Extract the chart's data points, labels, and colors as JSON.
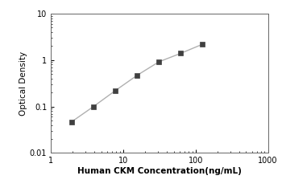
{
  "x": [
    1.95,
    3.9,
    7.8,
    15.6,
    31.25,
    62.5,
    125
  ],
  "y": [
    0.047,
    0.1,
    0.22,
    0.47,
    0.92,
    1.4,
    2.2
  ],
  "xlim": [
    1,
    1000
  ],
  "ylim": [
    0.01,
    10
  ],
  "xlabel": "Human CKM Concentration(ng/mL)",
  "ylabel": "Optical Density",
  "line_color": "#b0b0b0",
  "marker_color": "#404040",
  "marker": "s",
  "marker_size": 4,
  "background_color": "#ffffff",
  "label_fontsize": 7.5,
  "tick_fontsize": 7,
  "yticks": [
    0.01,
    0.1,
    1,
    10
  ],
  "ytick_labels": [
    "0.01",
    "0.1",
    "1",
    "10"
  ],
  "xticks": [
    1,
    10,
    100,
    1000
  ],
  "xtick_labels": [
    "1",
    "10",
    "100",
    "1000"
  ]
}
